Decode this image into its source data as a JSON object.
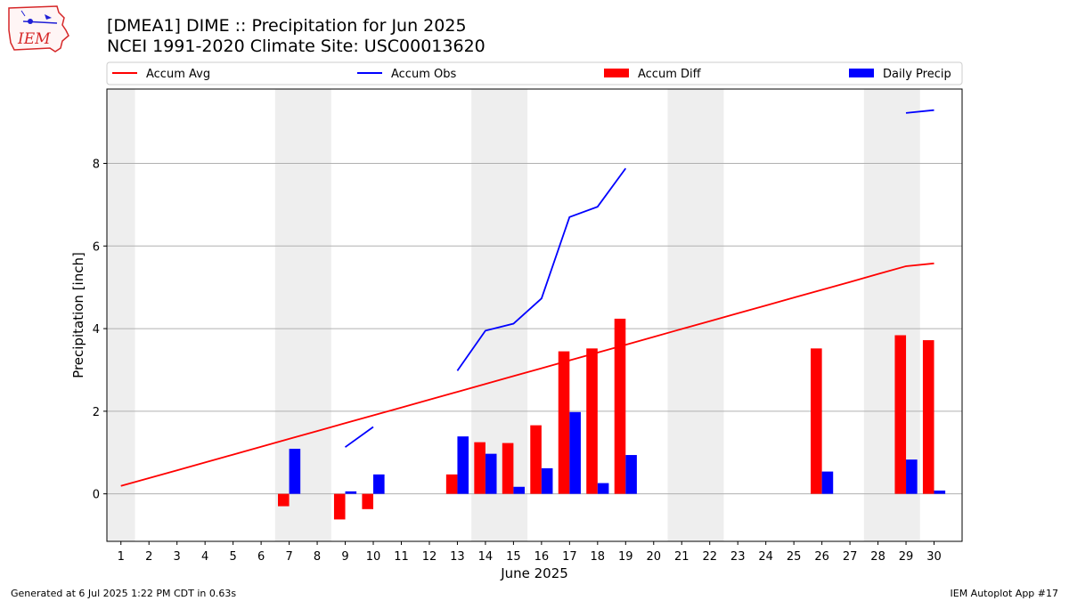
{
  "logo": {
    "text": "IEM",
    "color": "#d62728",
    "accent": "#1f1fd6"
  },
  "title": {
    "line1": "[DMEA1] DIME :: Precipitation for Jun 2025",
    "line2": "NCEI 1991-2020 Climate Site: USC00013620"
  },
  "footer": {
    "left": "Generated at 6 Jul 2025 1:22 PM CDT in 0.63s",
    "right": "IEM Autoplot App #17"
  },
  "chart_data": {
    "type": "bar",
    "xlabel": "June 2025",
    "ylabel": "Precipitation [inch]",
    "xlim": [
      0.5,
      31
    ],
    "ylim": [
      -1.15,
      9.8
    ],
    "yticks": [
      0,
      2,
      4,
      6,
      8
    ],
    "grid": "y",
    "legend_position": "top, above plot",
    "categories": [
      "1",
      "2",
      "3",
      "4",
      "5",
      "6",
      "7",
      "8",
      "9",
      "10",
      "11",
      "12",
      "13",
      "14",
      "15",
      "16",
      "17",
      "18",
      "19",
      "20",
      "21",
      "22",
      "23",
      "24",
      "25",
      "26",
      "27",
      "28",
      "29",
      "30"
    ],
    "weekend_bands": [
      [
        0.5,
        1.5
      ],
      [
        6.5,
        8.5
      ],
      [
        13.5,
        15.5
      ],
      [
        20.5,
        22.5
      ],
      [
        27.5,
        29.5
      ]
    ],
    "colors": {
      "avg": "#ff0000",
      "obs": "#0000ff",
      "diff": "#ff0000",
      "daily": "#0000ff",
      "band": "#eeeeee"
    },
    "series": [
      {
        "name": "Accum Avg",
        "kind": "line",
        "values": [
          0.19,
          0.38,
          0.57,
          0.76,
          0.95,
          1.14,
          1.33,
          1.52,
          1.71,
          1.9,
          2.09,
          2.28,
          2.47,
          2.66,
          2.85,
          3.04,
          3.23,
          3.42,
          3.61,
          3.8,
          3.99,
          4.18,
          4.37,
          4.56,
          4.75,
          4.94,
          5.13,
          5.32,
          5.51,
          5.58
        ]
      },
      {
        "name": "Accum Obs",
        "kind": "line",
        "values": [
          null,
          null,
          null,
          null,
          null,
          null,
          null,
          null,
          1.13,
          1.62,
          null,
          null,
          2.98,
          3.95,
          4.12,
          4.73,
          6.7,
          6.95,
          7.88,
          null,
          null,
          null,
          null,
          null,
          null,
          null,
          null,
          null,
          9.22,
          9.29
        ]
      },
      {
        "name": "Accum Diff",
        "kind": "bar",
        "values": [
          0,
          0,
          0,
          0,
          0,
          0,
          -0.3,
          0,
          -0.62,
          -0.37,
          0,
          0,
          0.47,
          1.25,
          1.23,
          1.66,
          3.45,
          3.52,
          4.24,
          0,
          0,
          0,
          0,
          0,
          0,
          3.52,
          0,
          0,
          3.84,
          3.72
        ]
      },
      {
        "name": "Daily Precip",
        "kind": "bar",
        "values": [
          0,
          0,
          0,
          0,
          0,
          0,
          1.09,
          0,
          0.06,
          0.47,
          0,
          0,
          1.39,
          0.97,
          0.17,
          0.62,
          1.98,
          0.26,
          0.94,
          0,
          0,
          0,
          0,
          0,
          0,
          0.54,
          0,
          0,
          0.83,
          0.08
        ]
      }
    ]
  }
}
